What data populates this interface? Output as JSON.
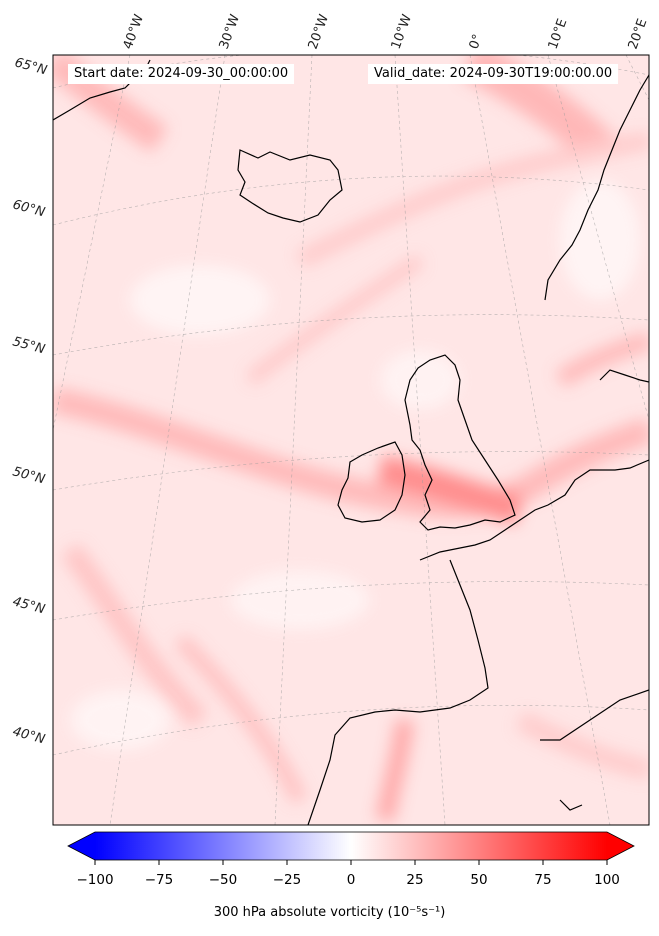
{
  "header": {
    "start_label": "Start date: 2024-09-30_00:00:00",
    "valid_label": "Valid_date: 2024-09-30T19:00:00.00"
  },
  "map": {
    "projection": "polar-stereographic (conic-like)",
    "extent": "North Atlantic / NW Europe",
    "field": "300 hPa absolute vorticity",
    "longitude_labels": [
      "40°W",
      "30°W",
      "20°W",
      "10°W",
      "0°",
      "10°E",
      "20°E"
    ],
    "latitude_labels": [
      "65°N",
      "60°N",
      "55°N",
      "50°N",
      "45°N",
      "40°N"
    ],
    "coastline_color": "#000000",
    "gridline_color": "#9a9a9a"
  },
  "colorbar": {
    "colormap": "bwr",
    "min_value": -100,
    "max_value": 100,
    "tick_labels": [
      "−100",
      "−75",
      "−50",
      "−25",
      "0",
      "25",
      "50",
      "75",
      "100"
    ],
    "extend": "both",
    "label": "300 hPa absolute vorticity (10⁻⁵s⁻¹)",
    "low_color": "#0000ff",
    "mid_color": "#ffffff",
    "high_color": "#ff0000"
  }
}
